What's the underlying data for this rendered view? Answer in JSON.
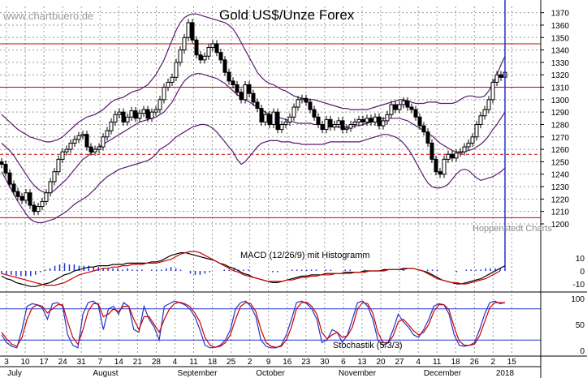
{
  "watermark": "www.chartbuero.de",
  "title": "Gold US$/Unze Forex",
  "source": "Hoppenstedt Charts",
  "colors": {
    "candle": "#000000",
    "bollinger": "#5a1a6e",
    "hline": "#cc0000",
    "macd_line": "#000000",
    "signal_line": "#cc0000",
    "histogram": "#2233cc",
    "stoch_k": "#2233cc",
    "stoch_d": "#cc0000",
    "stoch_level": "#2233cc",
    "grid": "#999999"
  },
  "chart_data": [
    {
      "type": "candlestick",
      "title": "Gold US$/Unze Forex",
      "ylim": [
        1200,
        1375
      ],
      "y_ticks": [
        1200,
        1210,
        1220,
        1230,
        1240,
        1250,
        1260,
        1270,
        1280,
        1290,
        1300,
        1310,
        1320,
        1330,
        1340,
        1350,
        1360,
        1370
      ],
      "x_ticks": [
        "3",
        "10",
        "17",
        "24",
        "31",
        "7",
        "14",
        "21",
        "28",
        "4",
        "11",
        "18",
        "25",
        "2",
        "9",
        "16",
        "23",
        "30",
        "6",
        "13",
        "20",
        "27",
        "4",
        "11",
        "18",
        "26",
        "2",
        "15"
      ],
      "months": [
        "July",
        "August",
        "September",
        "October",
        "November",
        "December",
        "2018"
      ],
      "horizontal_lines": [
        {
          "value": 1345,
          "style": "solid"
        },
        {
          "value": 1310,
          "style": "solid"
        },
        {
          "value": 1256,
          "style": "dashed"
        },
        {
          "value": 1205,
          "style": "solid"
        }
      ],
      "close": [
        1248,
        1241,
        1232,
        1226,
        1222,
        1219,
        1225,
        1215,
        1210,
        1214,
        1218,
        1225,
        1234,
        1242,
        1252,
        1258,
        1260,
        1265,
        1268,
        1271,
        1272,
        1262,
        1258,
        1260,
        1262,
        1270,
        1275,
        1282,
        1288,
        1290,
        1282,
        1286,
        1291,
        1285,
        1289,
        1292,
        1285,
        1290,
        1292,
        1300,
        1310,
        1314,
        1318,
        1330,
        1340,
        1350,
        1362,
        1348,
        1336,
        1332,
        1335,
        1342,
        1345,
        1338,
        1332,
        1322,
        1315,
        1312,
        1306,
        1300,
        1312,
        1305,
        1298,
        1293,
        1282,
        1288,
        1280,
        1290,
        1276,
        1280,
        1282,
        1286,
        1294,
        1300,
        1301,
        1298,
        1292,
        1286,
        1280,
        1276,
        1284,
        1278,
        1280,
        1283,
        1276,
        1277,
        1280,
        1282,
        1284,
        1282,
        1285,
        1282,
        1286,
        1279,
        1283,
        1288,
        1296,
        1292,
        1296,
        1299,
        1294,
        1292,
        1286,
        1279,
        1274,
        1265,
        1252,
        1242,
        1240,
        1252,
        1256,
        1253,
        1257,
        1258,
        1262,
        1265,
        1270,
        1280,
        1287,
        1292,
        1300,
        1314,
        1320,
        1318,
        1322
      ],
      "bollinger_upper": [
        1288,
        1285,
        1282,
        1279,
        1276,
        1274,
        1272,
        1270,
        1269,
        1268,
        1267,
        1266,
        1266,
        1267,
        1268,
        1270,
        1273,
        1276,
        1279,
        1282,
        1284,
        1286,
        1287,
        1288,
        1290,
        1292,
        1295,
        1298,
        1300,
        1301,
        1302,
        1304,
        1306,
        1307,
        1308,
        1310,
        1312,
        1316,
        1320,
        1326,
        1332,
        1340,
        1348,
        1356,
        1362,
        1366,
        1368,
        1369,
        1369,
        1368,
        1367,
        1366,
        1365,
        1364,
        1363,
        1362,
        1360,
        1357,
        1352,
        1346,
        1340,
        1334,
        1328,
        1322,
        1318,
        1315,
        1313,
        1312,
        1310,
        1308,
        1307,
        1305,
        1303,
        1302,
        1301,
        1300,
        1300,
        1300,
        1299,
        1298,
        1297,
        1296,
        1295,
        1294,
        1293,
        1293,
        1292,
        1292,
        1292,
        1292,
        1292,
        1293,
        1294,
        1295,
        1296,
        1297,
        1298,
        1299,
        1300,
        1300,
        1299,
        1298,
        1297,
        1297,
        1297,
        1298,
        1298,
        1298,
        1297,
        1297,
        1297,
        1297,
        1298,
        1300,
        1302,
        1303,
        1303,
        1302,
        1302,
        1303,
        1307,
        1313,
        1320,
        1328,
        1335
      ],
      "bollinger_middle": [
        1265,
        1262,
        1259,
        1255,
        1250,
        1245,
        1240,
        1235,
        1231,
        1228,
        1226,
        1225,
        1225,
        1227,
        1230,
        1233,
        1236,
        1240,
        1244,
        1248,
        1252,
        1254,
        1257,
        1259,
        1262,
        1264,
        1266,
        1268,
        1270,
        1272,
        1274,
        1276,
        1278,
        1280,
        1282,
        1283,
        1284,
        1285,
        1286,
        1288,
        1290,
        1294,
        1298,
        1304,
        1310,
        1315,
        1318,
        1320,
        1321,
        1321,
        1320,
        1319,
        1318,
        1317,
        1315,
        1313,
        1310,
        1307,
        1304,
        1302,
        1300,
        1298,
        1296,
        1294,
        1292,
        1290,
        1288,
        1287,
        1286,
        1285,
        1284,
        1283,
        1282,
        1281,
        1281,
        1281,
        1281,
        1280,
        1280,
        1280,
        1279,
        1278,
        1278,
        1278,
        1278,
        1278,
        1278,
        1279,
        1279,
        1280,
        1281,
        1282,
        1283,
        1284,
        1285,
        1285,
        1285,
        1285,
        1285,
        1284,
        1283,
        1281,
        1279,
        1277,
        1275,
        1273,
        1271,
        1268,
        1265,
        1263,
        1261,
        1259,
        1258,
        1258,
        1258,
        1259,
        1260,
        1262,
        1264,
        1267,
        1271,
        1276,
        1280,
        1285,
        1290
      ],
      "bollinger_lower": [
        1242,
        1236,
        1230,
        1224,
        1218,
        1213,
        1208,
        1204,
        1202,
        1201,
        1201,
        1202,
        1203,
        1204,
        1206,
        1208,
        1210,
        1213,
        1216,
        1218,
        1220,
        1222,
        1225,
        1228,
        1232,
        1235,
        1238,
        1240,
        1242,
        1244,
        1245,
        1246,
        1247,
        1248,
        1249,
        1250,
        1251,
        1253,
        1256,
        1260,
        1262,
        1264,
        1267,
        1270,
        1272,
        1274,
        1276,
        1278,
        1279,
        1280,
        1280,
        1279,
        1277,
        1274,
        1270,
        1266,
        1262,
        1258,
        1252,
        1248,
        1250,
        1254,
        1258,
        1262,
        1265,
        1266,
        1267,
        1267,
        1267,
        1266,
        1266,
        1266,
        1265,
        1265,
        1264,
        1264,
        1264,
        1264,
        1264,
        1264,
        1265,
        1266,
        1266,
        1266,
        1266,
        1266,
        1266,
        1266,
        1266,
        1267,
        1268,
        1269,
        1270,
        1271,
        1272,
        1272,
        1271,
        1270,
        1268,
        1265,
        1261,
        1256,
        1250,
        1244,
        1238,
        1233,
        1230,
        1229,
        1229,
        1230,
        1232,
        1236,
        1240,
        1243,
        1244,
        1243,
        1240,
        1237,
        1235,
        1236,
        1237,
        1238,
        1240,
        1242,
        1245
      ]
    },
    {
      "type": "line",
      "title": "MACD (12/26/9) mit Histogramm",
      "ylim": [
        -15,
        15
      ],
      "y_ticks": [
        10,
        0,
        -10
      ],
      "series": [
        {
          "name": "MACD",
          "values": [
            -4,
            -6,
            -7,
            -9,
            -10,
            -11,
            -12,
            -12,
            -11,
            -10,
            -9,
            -7,
            -5,
            -3,
            -2,
            0,
            1,
            2,
            3,
            3,
            4,
            4,
            4,
            5,
            5,
            5,
            6,
            6,
            6,
            6,
            6,
            7,
            7,
            8,
            10,
            12,
            13,
            14,
            14,
            13,
            12,
            11,
            10,
            9,
            8,
            6,
            5,
            3,
            2,
            0,
            -2,
            -3,
            -5,
            -6,
            -7,
            -8,
            -9,
            -9,
            -8,
            -7,
            -6,
            -5,
            -4,
            -4,
            -3,
            -3,
            -3,
            -2,
            -2,
            -2,
            -2,
            -1,
            -1,
            -1,
            -1,
            0,
            0,
            0,
            0,
            1,
            1,
            1,
            1,
            2,
            2,
            2,
            1,
            0,
            -1,
            -3,
            -5,
            -7,
            -8,
            -9,
            -10,
            -10,
            -9,
            -8,
            -7,
            -6,
            -4,
            -2,
            0,
            2,
            4
          ]
        },
        {
          "name": "Signal",
          "values": [
            -2,
            -3,
            -4,
            -5,
            -6,
            -7,
            -8,
            -9,
            -10,
            -11,
            -11,
            -11,
            -10,
            -9,
            -7,
            -5,
            -3,
            -2,
            -1,
            0,
            1,
            2,
            2,
            3,
            3,
            4,
            4,
            5,
            5,
            5,
            6,
            6,
            6,
            7,
            8,
            9,
            11,
            13,
            14,
            15,
            15,
            14,
            12,
            10,
            8,
            6,
            4,
            2,
            0,
            -1,
            -3,
            -4,
            -5,
            -6,
            -7,
            -8,
            -8,
            -8,
            -8,
            -7,
            -7,
            -6,
            -5,
            -5,
            -4,
            -4,
            -3,
            -3,
            -3,
            -2,
            -2,
            -2,
            -2,
            -1,
            -1,
            -1,
            0,
            0,
            0,
            0,
            1,
            1,
            1,
            1,
            2,
            2,
            1,
            0,
            -2,
            -4,
            -6,
            -7,
            -8,
            -9,
            -9,
            -10,
            -10,
            -9,
            -8,
            -7,
            -6,
            -4,
            -2,
            0
          ]
        }
      ]
    },
    {
      "type": "line",
      "title": "Stochastik (5/3/3)",
      "ylim": [
        0,
        100
      ],
      "y_ticks": [
        100,
        50,
        0
      ],
      "levels": [
        80,
        20
      ],
      "series": [
        {
          "name": "%K",
          "values": [
            30,
            15,
            8,
            5,
            40,
            85,
            90,
            88,
            82,
            60,
            90,
            92,
            85,
            30,
            10,
            5,
            70,
            92,
            95,
            88,
            40,
            80,
            85,
            70,
            92,
            85,
            40,
            35,
            85,
            60,
            45,
            20,
            85,
            90,
            95,
            92,
            88,
            80,
            65,
            40,
            10,
            5,
            6,
            10,
            20,
            40,
            80,
            92,
            95,
            85,
            65,
            20,
            8,
            5,
            5,
            10,
            30,
            60,
            92,
            95,
            90,
            80,
            60,
            15,
            20,
            40,
            35,
            15,
            30,
            60,
            92,
            95,
            85,
            60,
            20,
            10,
            15,
            40,
            70,
            55,
            45,
            30,
            25,
            40,
            60,
            85,
            90,
            88,
            70,
            30,
            10,
            8,
            10,
            15,
            40,
            70,
            92,
            95,
            90,
            92
          ]
        },
        {
          "name": "%D",
          "values": [
            35,
            22,
            12,
            8,
            25,
            60,
            82,
            88,
            85,
            72,
            80,
            88,
            88,
            55,
            25,
            12,
            40,
            75,
            90,
            90,
            65,
            70,
            80,
            75,
            85,
            85,
            60,
            40,
            65,
            65,
            50,
            35,
            60,
            80,
            90,
            93,
            90,
            85,
            72,
            55,
            25,
            10,
            6,
            8,
            15,
            30,
            60,
            85,
            92,
            90,
            75,
            40,
            15,
            8,
            6,
            8,
            20,
            45,
            80,
            92,
            93,
            85,
            70,
            35,
            22,
            30,
            35,
            25,
            28,
            45,
            80,
            92,
            90,
            72,
            35,
            15,
            14,
            28,
            55,
            60,
            50,
            38,
            30,
            35,
            50,
            75,
            88,
            88,
            78,
            45,
            18,
            10,
            10,
            12,
            28,
            55,
            82,
            92,
            92,
            92
          ]
        }
      ]
    }
  ]
}
